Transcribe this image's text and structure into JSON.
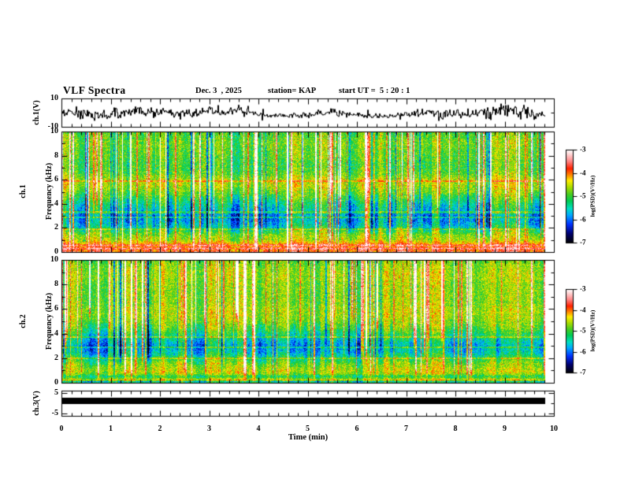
{
  "header": {
    "title": "VLF Spectra",
    "date": "Dec. 3  , 2025",
    "station": "station= KAP",
    "start_ut": "start UT =  5 : 20 : 1"
  },
  "xaxis": {
    "label": "Time (min)",
    "tick_labels": [
      "0",
      "1",
      "2",
      "3",
      "4",
      "5",
      "6",
      "7",
      "8",
      "9",
      "10"
    ],
    "tick_values": [
      0,
      1,
      2,
      3,
      4,
      5,
      6,
      7,
      8,
      9,
      10
    ],
    "lim": [
      0,
      10
    ],
    "minor_step_min": 0.2
  },
  "panels": {
    "ch1_wave": {
      "label": "ch.1(V)",
      "tick_labels": [
        "10",
        "-10"
      ],
      "tick_values": [
        10,
        -10
      ],
      "ylim": [
        -10,
        10
      ]
    },
    "ch1_spec": {
      "name": "ch.1",
      "unit_label": "Frequency (kHz)",
      "tick_labels": [
        "10",
        "8",
        "6",
        "4",
        "2",
        "0"
      ],
      "tick_values": [
        10,
        8,
        6,
        4,
        2,
        0
      ],
      "ylim": [
        0,
        10
      ]
    },
    "ch2_spec": {
      "name": "ch.2",
      "unit_label": "Frequency (kHz)",
      "tick_labels": [
        "10",
        "8",
        "6",
        "4",
        "2",
        "0"
      ],
      "tick_values": [
        10,
        8,
        6,
        4,
        2,
        0
      ],
      "ylim": [
        0,
        10
      ]
    },
    "ch3_wave": {
      "label": "ch.3(V)",
      "tick_labels": [
        "5",
        "-5"
      ],
      "tick_values": [
        5,
        -5
      ],
      "ylim": [
        -5,
        5
      ]
    }
  },
  "colorbars": [
    {
      "unit_label": "log(PSD)(V²/Hz)",
      "tick_labels": [
        "-3",
        "-4",
        "-5",
        "-6",
        "-7"
      ],
      "tick_values": [
        -3,
        -4,
        -5,
        -6,
        -7
      ],
      "lim": [
        -7,
        -3
      ]
    },
    {
      "unit_label": "log(PSD)(V²/Hz)",
      "tick_labels": [
        "-3",
        "-4",
        "-5",
        "-6",
        "-7"
      ],
      "tick_values": [
        -3,
        -4,
        -5,
        -6,
        -7
      ],
      "lim": [
        -7,
        -3
      ]
    }
  ],
  "colors": {
    "foreground": "#000000",
    "background": "#ffffff",
    "colormap_stops": [
      [
        0.0,
        "#000000"
      ],
      [
        0.1,
        "#00006e"
      ],
      [
        0.2,
        "#0030ff"
      ],
      [
        0.3,
        "#00aaff"
      ],
      [
        0.37,
        "#00e0c0"
      ],
      [
        0.45,
        "#00cc55"
      ],
      [
        0.52,
        "#44cc22"
      ],
      [
        0.6,
        "#aadd00"
      ],
      [
        0.67,
        "#ffee00"
      ],
      [
        0.73,
        "#ff8800"
      ],
      [
        0.8,
        "#ff2200"
      ],
      [
        0.88,
        "#ff8888"
      ],
      [
        0.95,
        "#ffd0d0"
      ],
      [
        1.0,
        "#ffffff"
      ]
    ]
  },
  "chart_data": [
    {
      "panel": "ch1_waveform",
      "type": "line",
      "ylabel": "ch.1(V)",
      "ylim": [
        -10,
        10
      ],
      "xlim_min": [
        0,
        10
      ],
      "data_extent_min": [
        0,
        9.8
      ],
      "description": "dense broadband noise waveform, envelope about ±5 V with transient spikes toward ±9 V"
    },
    {
      "panel": "ch1_spectrogram",
      "type": "heatmap",
      "ylabel": "ch.1 Frequency (kHz)",
      "ylim": [
        0,
        10
      ],
      "xlim_min": [
        0,
        10
      ],
      "data_extent_min": [
        0,
        9.8
      ],
      "zlabel": "log(PSD)(V²/Hz)",
      "zlim": [
        -7,
        -3
      ],
      "freq_profile": [
        [
          0.0,
          -3.6
        ],
        [
          0.1,
          -4.0
        ],
        [
          0.2,
          -3.8
        ],
        [
          0.3,
          -3.5
        ],
        [
          0.45,
          -4.1
        ],
        [
          0.55,
          -3.5
        ],
        [
          0.7,
          -4.2
        ],
        [
          0.85,
          -4.4
        ],
        [
          1.0,
          -4.6
        ],
        [
          1.3,
          -4.7
        ],
        [
          1.6,
          -4.9
        ],
        [
          2.0,
          -5.5
        ],
        [
          2.5,
          -5.8
        ],
        [
          3.0,
          -5.9
        ],
        [
          3.5,
          -5.6
        ],
        [
          4.0,
          -5.4
        ],
        [
          4.5,
          -5.1
        ],
        [
          5.0,
          -4.8
        ],
        [
          5.5,
          -4.6
        ],
        [
          6.0,
          -4.6
        ],
        [
          6.5,
          -4.9
        ],
        [
          7.0,
          -5.0
        ],
        [
          7.5,
          -5.0
        ],
        [
          8.0,
          -4.9
        ],
        [
          8.5,
          -4.9
        ],
        [
          9.0,
          -4.8
        ],
        [
          9.5,
          -4.9
        ],
        [
          10.0,
          -5.0
        ]
      ],
      "hum_lines_khz": [
        1.9,
        2.85,
        3.3,
        5.9
      ],
      "streaks": {
        "bright": 95,
        "dark": 30,
        "full_height_fraction": 0.75,
        "noise_sigma": 0.4
      },
      "description": "green background noise near -5 with many vertical red/orange broadband transients, dark blue band 2-3.5 kHz, bright white/yellow horizontal lines below 1 kHz"
    },
    {
      "panel": "ch2_spectrogram",
      "type": "heatmap",
      "ylabel": "ch.2 Frequency (kHz)",
      "ylim": [
        0,
        10
      ],
      "xlim_min": [
        0,
        10
      ],
      "data_extent_min": [
        0,
        9.8
      ],
      "zlabel": "log(PSD)(V²/Hz)",
      "zlim": [
        -7,
        -3
      ],
      "freq_profile": [
        [
          0.0,
          -5.0
        ],
        [
          0.1,
          -5.6
        ],
        [
          0.2,
          -4.3
        ],
        [
          0.3,
          -4.6
        ],
        [
          0.5,
          -5.2
        ],
        [
          0.7,
          -4.7
        ],
        [
          0.9,
          -4.5
        ],
        [
          1.2,
          -4.6
        ],
        [
          1.6,
          -4.8
        ],
        [
          2.0,
          -5.2
        ],
        [
          2.5,
          -5.6
        ],
        [
          3.0,
          -5.8
        ],
        [
          3.5,
          -5.5
        ],
        [
          4.0,
          -5.2
        ],
        [
          4.5,
          -4.9
        ],
        [
          5.0,
          -4.7
        ],
        [
          5.5,
          -4.6
        ],
        [
          6.0,
          -4.6
        ],
        [
          6.5,
          -4.7
        ],
        [
          7.0,
          -4.7
        ],
        [
          7.5,
          -4.7
        ],
        [
          8.0,
          -4.7
        ],
        [
          8.5,
          -4.6
        ],
        [
          9.0,
          -4.6
        ],
        [
          9.5,
          -4.7
        ],
        [
          10.0,
          -4.8
        ]
      ],
      "hum_lines_khz": [
        2.0,
        2.9,
        3.7
      ],
      "streaks": {
        "bright": 85,
        "dark": 15,
        "full_height_fraction": 0.45,
        "noise_sigma": 0.38
      },
      "description": "uniform green noise near -4.7 with vertical red transients fading below ~4 kHz, blue-cyan band 2-3.5 kHz, dark band below 0.2 kHz"
    },
    {
      "panel": "ch3_waveform",
      "type": "line",
      "ylabel": "ch.3(V)",
      "ylim": [
        -5,
        5
      ],
      "xlim_min": [
        0,
        10
      ],
      "data_extent_min": [
        0,
        9.8
      ],
      "description": "flat saturated trace near 0 V rendered as a solid thick black bar about ±1.3 V"
    }
  ]
}
